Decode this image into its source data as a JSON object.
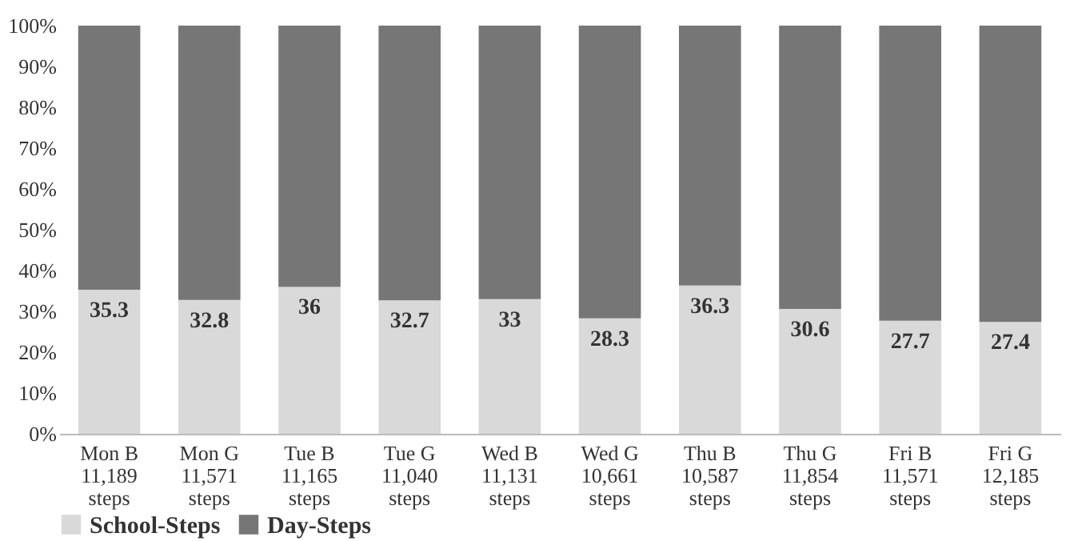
{
  "chart_data": {
    "type": "bar",
    "stacked": true,
    "categories": [
      "Mon B\n11,189\nsteps",
      "Mon G\n11,571\nsteps",
      "Tue B\n11,165\nsteps",
      "Tue G\n11,040\nsteps",
      "Wed B\n11,131\nsteps",
      "Wed G\n10,661\nsteps",
      "Thu B\n10,587\nsteps",
      "Thu G\n11,854\nsteps",
      "Fri B\n11,571\nsteps",
      "Fri G\n12,185\nsteps"
    ],
    "series": [
      {
        "name": "School-Steps",
        "color": "#d9d9d9",
        "values": [
          35.3,
          32.8,
          36,
          32.7,
          33,
          28.3,
          36.3,
          30.6,
          27.7,
          27.4
        ],
        "value_labels": [
          "35.3",
          "32.8",
          "36",
          "32.7",
          "33",
          "28.3",
          "36.3",
          "30.6",
          "27.7",
          "27.4"
        ]
      },
      {
        "name": "Day-Steps",
        "color": "#767676",
        "values": [
          64.7,
          67.2,
          64,
          67.3,
          67,
          71.7,
          63.7,
          69.4,
          72.3,
          72.6
        ]
      }
    ],
    "ylim": [
      0,
      100
    ],
    "yticks": [
      {
        "value": 0,
        "label": "0%"
      },
      {
        "value": 10,
        "label": "10%"
      },
      {
        "value": 20,
        "label": "20%"
      },
      {
        "value": 30,
        "label": "30%"
      },
      {
        "value": 40,
        "label": "40%"
      },
      {
        "value": 50,
        "label": "50%"
      },
      {
        "value": 60,
        "label": "60%"
      },
      {
        "value": 70,
        "label": "70%"
      },
      {
        "value": 80,
        "label": "80%"
      },
      {
        "value": 90,
        "label": "90%"
      },
      {
        "value": 100,
        "label": "100%"
      }
    ],
    "grid": false,
    "legend": "bottom"
  }
}
